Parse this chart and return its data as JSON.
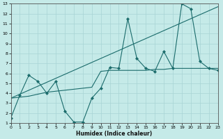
{
  "xlabel": "Humidex (Indice chaleur)",
  "bg_color": "#c5eae8",
  "line_color": "#1a6b6b",
  "grid_color": "#a8d4d4",
  "xlim": [
    0,
    23
  ],
  "ylim": [
    1,
    13
  ],
  "xticks": [
    0,
    1,
    2,
    3,
    4,
    5,
    6,
    7,
    8,
    9,
    10,
    11,
    12,
    13,
    14,
    15,
    16,
    17,
    18,
    19,
    20,
    21,
    22,
    23
  ],
  "yticks": [
    1,
    2,
    3,
    4,
    5,
    6,
    7,
    8,
    9,
    10,
    11,
    12,
    13
  ],
  "line_zigzag_x": [
    0,
    1,
    2,
    3,
    4,
    5,
    6,
    7,
    8,
    9,
    10,
    11,
    12,
    13,
    14,
    15,
    16,
    17,
    18,
    19,
    20,
    21,
    22,
    23
  ],
  "line_zigzag_y": [
    1.5,
    3.8,
    5.8,
    5.2,
    4.0,
    5.2,
    2.2,
    1.1,
    1.1,
    3.5,
    4.5,
    6.6,
    6.5,
    11.5,
    7.5,
    6.5,
    6.2,
    8.2,
    6.5,
    13.0,
    12.5,
    7.2,
    6.5,
    6.3
  ],
  "line_diag_x": [
    0,
    1,
    2,
    3,
    4,
    5,
    6,
    7,
    8,
    9,
    10,
    11,
    12,
    13,
    14,
    15,
    16,
    17,
    18,
    19,
    20,
    21,
    22,
    23
  ],
  "line_diag_y": [
    3.5,
    3.9,
    4.3,
    4.7,
    5.1,
    5.5,
    5.9,
    6.3,
    6.7,
    7.1,
    7.5,
    7.9,
    8.3,
    8.7,
    9.1,
    9.5,
    9.9,
    10.3,
    10.7,
    11.1,
    11.5,
    11.9,
    12.3,
    12.7
  ],
  "line_flat_x": [
    0,
    1,
    2,
    3,
    4,
    5,
    6,
    7,
    8,
    9,
    10,
    11,
    12,
    13,
    14,
    15,
    16,
    17,
    18,
    19,
    20,
    21,
    22,
    23
  ],
  "line_flat_y": [
    3.5,
    3.6,
    3.7,
    3.9,
    4.1,
    4.2,
    4.3,
    4.4,
    4.5,
    4.6,
    6.2,
    6.3,
    6.3,
    6.3,
    6.3,
    6.3,
    6.4,
    6.4,
    6.5,
    6.5,
    6.5,
    6.5,
    6.5,
    6.5
  ]
}
